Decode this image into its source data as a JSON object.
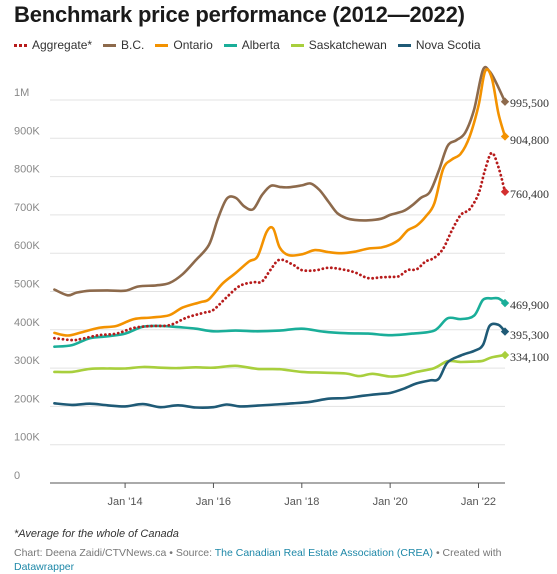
{
  "title": "Benchmark price performance (2012—2022)",
  "colors": {
    "Aggregate*": "#b71c1c",
    "B.C.": "#8d6a4c",
    "Ontario": "#f39200",
    "Alberta": "#1aae99",
    "Saskatchewan": "#a8cf3d",
    "Nova Scotia": "#1f5a76",
    "end_marker_aggregate": "#d32f2f"
  },
  "footnote": "*Average for the whole of Canada",
  "credits": {
    "chart_by": "Chart: Deena Zaidi/CTVNews.ca",
    "source_prefix": "Source:",
    "source": "The Canadian Real Estate Association (CREA)",
    "created_with_prefix": "Created with",
    "created_with": "Datawrapper"
  },
  "chart_data": {
    "type": "line",
    "title": "Benchmark price performance (2012—2022)",
    "xlabel": "",
    "ylabel": "",
    "xlim": [
      2012.3,
      2022.6
    ],
    "ylim": [
      0,
      1000000
    ],
    "yticks": [
      0,
      100000,
      200000,
      300000,
      400000,
      500000,
      600000,
      700000,
      800000,
      900000,
      1000000
    ],
    "ytick_labels": [
      "0",
      "100K",
      "200K",
      "300K",
      "400K",
      "500K",
      "600K",
      "700K",
      "800K",
      "900K",
      "1M"
    ],
    "xticks": [
      2014.0,
      2016.0,
      2018.0,
      2020.0,
      2022.0
    ],
    "xtick_labels": [
      "Jan '14",
      "Jan '16",
      "Jan '18",
      "Jan '20",
      "Jan '22"
    ],
    "grid": "horizontal",
    "legend_position": "top",
    "series": [
      {
        "name": "Aggregate*",
        "style": "dotted",
        "end_label": "760,400",
        "x": [
          2012.4,
          2012.8,
          2013.0,
          2013.4,
          2013.8,
          2014.2,
          2014.6,
          2015.0,
          2015.4,
          2015.8,
          2016.0,
          2016.3,
          2016.6,
          2016.9,
          2017.1,
          2017.3,
          2017.5,
          2017.8,
          2018.0,
          2018.3,
          2018.6,
          2018.9,
          2019.2,
          2019.5,
          2019.8,
          2020.0,
          2020.2,
          2020.4,
          2020.6,
          2020.8,
          2021.0,
          2021.2,
          2021.4,
          2021.6,
          2021.8,
          2022.0,
          2022.15,
          2022.3,
          2022.45,
          2022.6
        ],
        "y": [
          378000,
          373000,
          376000,
          386000,
          390000,
          405000,
          410000,
          412000,
          432000,
          445000,
          452000,
          485000,
          515000,
          524000,
          526000,
          558000,
          583000,
          570000,
          556000,
          555000,
          562000,
          558000,
          550000,
          535000,
          537000,
          538000,
          540000,
          556000,
          558000,
          578000,
          588000,
          612000,
          660000,
          700000,
          715000,
          755000,
          818000,
          862000,
          825000,
          760400
        ]
      },
      {
        "name": "B.C.",
        "style": "solid",
        "end_label": "995,500",
        "x": [
          2012.4,
          2012.7,
          2012.9,
          2013.2,
          2013.6,
          2014.0,
          2014.3,
          2014.7,
          2015.0,
          2015.3,
          2015.6,
          2015.9,
          2016.1,
          2016.3,
          2016.5,
          2016.7,
          2016.9,
          2017.1,
          2017.3,
          2017.5,
          2017.7,
          2018.0,
          2018.2,
          2018.4,
          2018.6,
          2018.8,
          2019.0,
          2019.2,
          2019.5,
          2019.8,
          2020.0,
          2020.3,
          2020.5,
          2020.7,
          2020.9,
          2021.1,
          2021.3,
          2021.5,
          2021.7,
          2021.9,
          2022.1,
          2022.25,
          2022.4,
          2022.6
        ],
        "y": [
          505000,
          490000,
          497000,
          502000,
          503000,
          502000,
          513000,
          516000,
          522000,
          545000,
          582000,
          622000,
          690000,
          742000,
          745000,
          722000,
          715000,
          752000,
          776000,
          773000,
          772000,
          777000,
          782000,
          765000,
          735000,
          705000,
          692000,
          687000,
          686000,
          690000,
          700000,
          710000,
          725000,
          745000,
          760000,
          815000,
          880000,
          895000,
          915000,
          975000,
          1078000,
          1075000,
          1045000,
          995500
        ]
      },
      {
        "name": "Ontario",
        "style": "solid",
        "end_label": "904,800",
        "x": [
          2012.4,
          2012.7,
          2013.0,
          2013.4,
          2013.8,
          2014.2,
          2014.6,
          2015.0,
          2015.3,
          2015.7,
          2015.9,
          2016.2,
          2016.5,
          2016.8,
          2017.0,
          2017.2,
          2017.35,
          2017.5,
          2017.7,
          2018.0,
          2018.3,
          2018.6,
          2018.9,
          2019.2,
          2019.5,
          2019.8,
          2020.0,
          2020.2,
          2020.4,
          2020.6,
          2020.8,
          2021.0,
          2021.2,
          2021.4,
          2021.6,
          2021.8,
          2022.0,
          2022.15,
          2022.3,
          2022.45,
          2022.6
        ],
        "y": [
          392000,
          385000,
          393000,
          405000,
          410000,
          428000,
          432000,
          438000,
          458000,
          472000,
          480000,
          520000,
          548000,
          578000,
          592000,
          655000,
          665000,
          615000,
          595000,
          597000,
          608000,
          603000,
          600000,
          604000,
          612000,
          615000,
          622000,
          635000,
          660000,
          672000,
          695000,
          730000,
          820000,
          845000,
          860000,
          905000,
          985000,
          1075000,
          1058000,
          965000,
          904800
        ]
      },
      {
        "name": "Alberta",
        "style": "solid",
        "end_label": "469,900",
        "x": [
          2012.4,
          2012.8,
          2013.2,
          2013.6,
          2014.0,
          2014.4,
          2014.8,
          2015.2,
          2015.6,
          2016.0,
          2016.5,
          2017.0,
          2017.5,
          2018.0,
          2018.5,
          2019.0,
          2019.5,
          2020.0,
          2020.5,
          2021.0,
          2021.3,
          2021.6,
          2021.9,
          2022.1,
          2022.3,
          2022.45,
          2022.6
        ],
        "y": [
          356000,
          360000,
          378000,
          383000,
          390000,
          408000,
          410000,
          407000,
          403000,
          396000,
          398000,
          396000,
          398000,
          403000,
          395000,
          391000,
          390000,
          386000,
          390000,
          398000,
          430000,
          428000,
          437000,
          478000,
          482000,
          482000,
          469900
        ]
      },
      {
        "name": "Saskatchewan",
        "style": "solid",
        "end_label": "334,100",
        "x": [
          2012.4,
          2012.8,
          2013.2,
          2013.6,
          2014.0,
          2014.4,
          2014.8,
          2015.2,
          2015.6,
          2016.0,
          2016.5,
          2017.0,
          2017.5,
          2018.0,
          2018.5,
          2019.0,
          2019.3,
          2019.6,
          2020.0,
          2020.3,
          2020.6,
          2021.0,
          2021.3,
          2021.6,
          2021.9,
          2022.1,
          2022.3,
          2022.6
        ],
        "y": [
          290000,
          290000,
          298000,
          299000,
          299000,
          303000,
          301000,
          300000,
          302000,
          301000,
          306000,
          298000,
          297000,
          290000,
          288000,
          286000,
          279000,
          285000,
          278000,
          281000,
          290000,
          300000,
          318000,
          316000,
          317000,
          319000,
          328000,
          334100
        ]
      },
      {
        "name": "Nova Scotia",
        "style": "solid",
        "end_label": "395,300",
        "x": [
          2012.4,
          2012.8,
          2013.2,
          2013.6,
          2014.0,
          2014.4,
          2014.8,
          2015.2,
          2015.6,
          2016.0,
          2016.3,
          2016.6,
          2017.0,
          2017.4,
          2017.8,
          2018.2,
          2018.6,
          2019.0,
          2019.4,
          2019.8,
          2020.0,
          2020.3,
          2020.6,
          2020.9,
          2021.1,
          2021.3,
          2021.6,
          2021.9,
          2022.1,
          2022.25,
          2022.45,
          2022.6
        ],
        "y": [
          208000,
          204000,
          207000,
          203000,
          200000,
          206000,
          198000,
          203000,
          197000,
          198000,
          205000,
          200000,
          202000,
          205000,
          208000,
          212000,
          220000,
          222000,
          228000,
          233000,
          235000,
          246000,
          260000,
          268000,
          272000,
          315000,
          333000,
          345000,
          360000,
          410000,
          413000,
          395300
        ]
      }
    ]
  }
}
